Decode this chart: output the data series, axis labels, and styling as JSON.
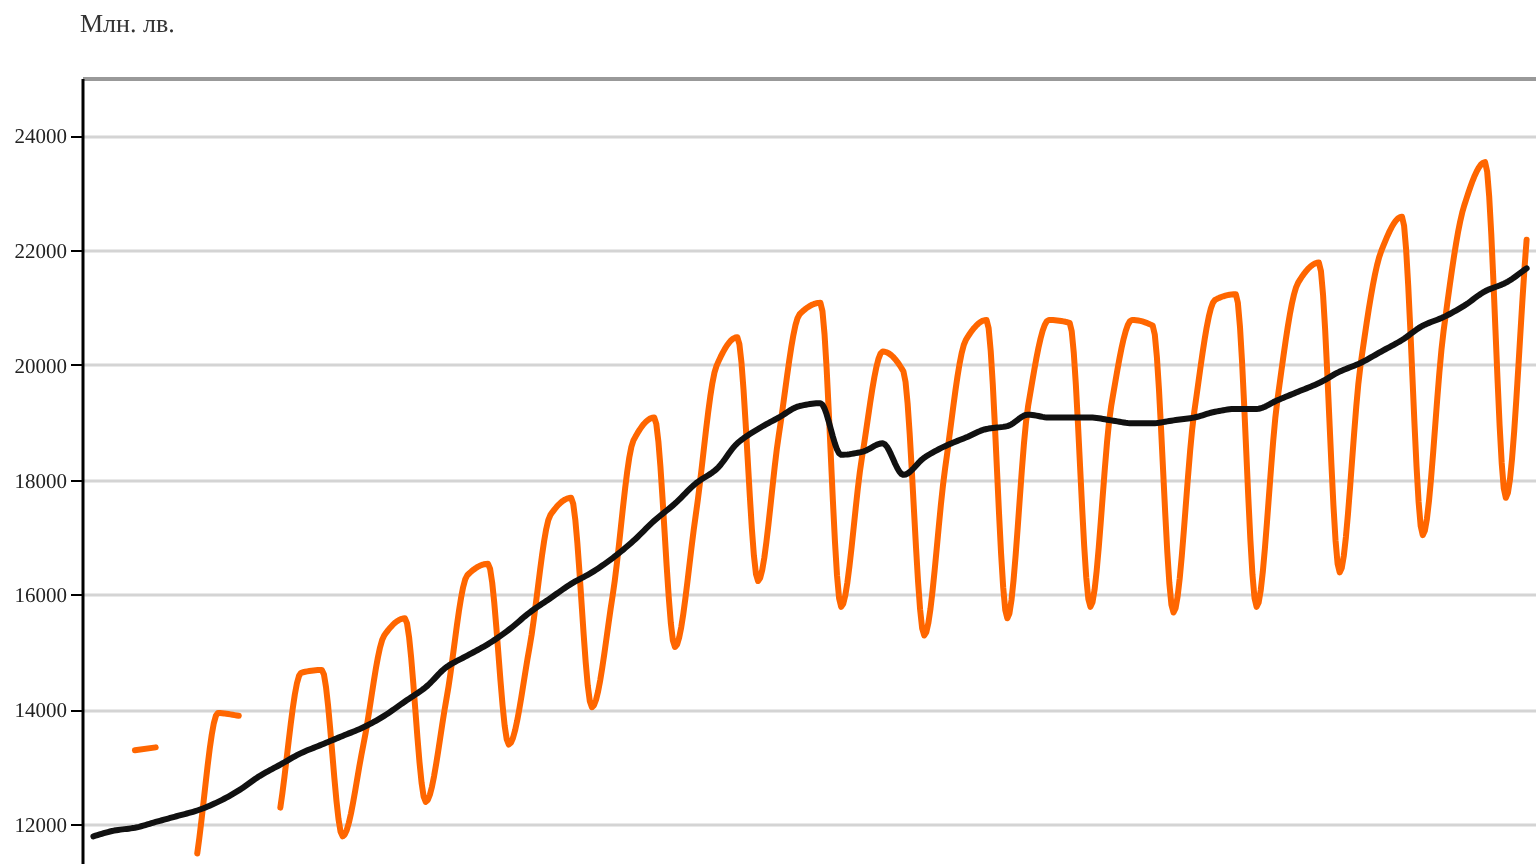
{
  "chart_data": {
    "type": "line",
    "ylabel": "Млн. лв.",
    "categories": [
      null,
      null,
      null,
      null,
      null,
      null,
      null,
      null,
      null,
      null,
      null,
      null,
      null,
      null,
      null,
      null,
      null,
      null,
      null,
      null,
      null,
      null,
      null,
      null,
      null,
      null,
      null,
      null,
      null,
      null,
      null,
      null,
      null,
      null,
      null,
      null,
      null,
      null,
      null,
      null,
      null,
      null,
      null,
      null,
      null,
      null,
      null,
      null,
      null,
      null,
      null,
      null,
      null,
      null,
      null,
      null,
      null,
      null,
      null,
      null,
      null,
      null,
      null,
      null,
      null,
      null,
      null,
      null,
      null,
      null
    ],
    "series": [
      {
        "color": "#ff6600",
        "values": [
          null,
          null,
          13300,
          13350,
          null,
          11500,
          13950,
          13900,
          null,
          12300,
          14650,
          14700,
          11800,
          13400,
          15300,
          15600,
          12400,
          14200,
          16350,
          16550,
          13400,
          15100,
          17400,
          17700,
          14050,
          16000,
          18700,
          19100,
          15100,
          17400,
          20000,
          20500,
          16250,
          18800,
          20900,
          21100,
          15800,
          18400,
          20250,
          19900,
          15300,
          18200,
          20450,
          20800,
          15600,
          19300,
          20800,
          20750,
          15800,
          19300,
          20800,
          20700,
          15700,
          19200,
          21150,
          21250,
          15800,
          19400,
          21450,
          21800,
          16400,
          20000,
          22000,
          22600,
          17050,
          20600,
          22800,
          23550,
          17700,
          22200
        ]
      },
      {
        "color": "#111111",
        "values": [
          11800,
          11900,
          11950,
          12050,
          12150,
          12250,
          12400,
          12600,
          12850,
          13050,
          13250,
          13400,
          13550,
          13700,
          13900,
          14150,
          14400,
          14750,
          14950,
          15150,
          15400,
          15700,
          15950,
          16200,
          16400,
          16650,
          16950,
          17300,
          17600,
          17950,
          18200,
          18650,
          18900,
          19100,
          19300,
          19350,
          18450,
          18500,
          18650,
          18100,
          18400,
          18600,
          18750,
          18900,
          18950,
          19150,
          19100,
          19100,
          19100,
          19050,
          19000,
          19000,
          19050,
          19100,
          19200,
          19250,
          19250,
          19400,
          19550,
          19700,
          19900,
          20050,
          20250,
          20450,
          20700,
          20850,
          21050,
          21300,
          21450,
          21700
        ]
      }
    ],
    "ylim": [
      11300,
      25000
    ],
    "yticks": [
      12000,
      14000,
      16000,
      18000,
      20000,
      22000,
      24000
    ],
    "grid": "y",
    "tick_labels": "y"
  }
}
